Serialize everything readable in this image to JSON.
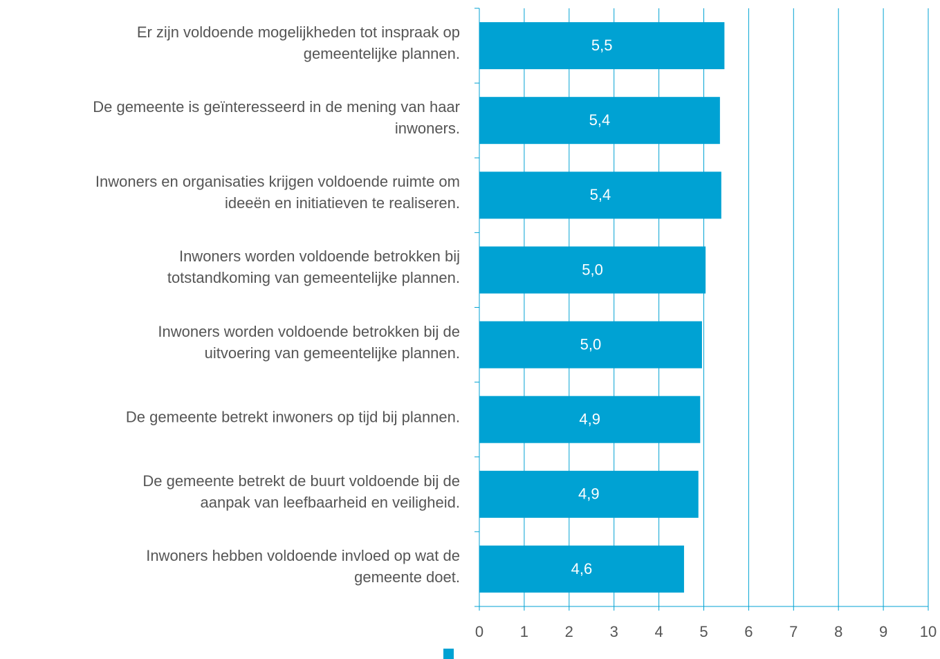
{
  "chart_data": {
    "type": "bar",
    "orientation": "horizontal",
    "categories": [
      "Er zijn voldoende mogelijkheden tot inspraak op\ngemeentelijke plannen.",
      "De gemeente is geïnteresseerd in de mening van haar\ninwoners.",
      "Inwoners en organisaties krijgen voldoende ruimte om\nideeën en initiatieven te realiseren.",
      "Inwoners worden voldoende betrokken bij\ntotstandkoming van gemeentelijke plannen.",
      "Inwoners worden voldoende betrokken bij de\nuitvoering van gemeentelijke plannen.",
      "De gemeente betrekt inwoners op tijd bij plannen.",
      "De gemeente betrekt de buurt voldoende bij de\naanpak van leefbaarheid en veiligheid.",
      "Inwoners hebben voldoende invloed op wat de\ngemeente doet."
    ],
    "values": [
      5.46,
      5.36,
      5.39,
      5.04,
      4.96,
      4.92,
      4.88,
      4.56
    ],
    "value_labels": [
      "5,5",
      "5,4",
      "5,4",
      "5,0",
      "5,0",
      "4,9",
      "4,9",
      "4,6"
    ],
    "color": "#00a2d3",
    "xlim": [
      0,
      10
    ],
    "xticks": [
      0,
      1,
      2,
      3,
      4,
      5,
      6,
      7,
      8,
      9,
      10
    ],
    "grid": true
  }
}
